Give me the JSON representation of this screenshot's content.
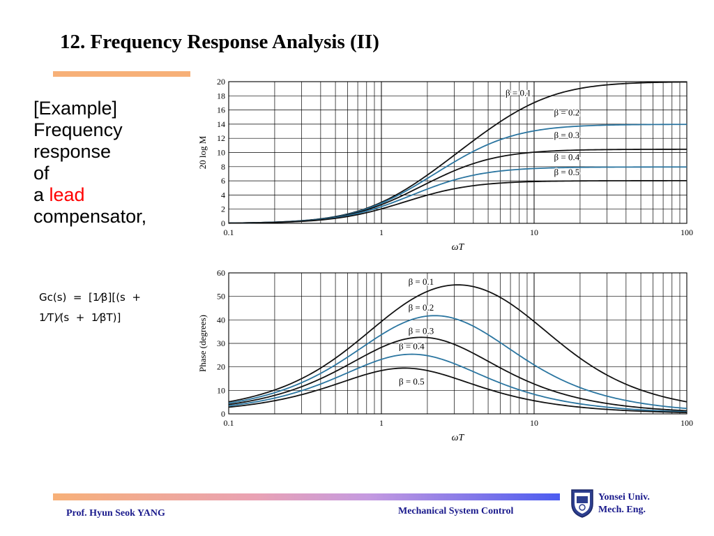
{
  "slide": {
    "title": "12. Frequency Response Analysis (II)",
    "text_lines": [
      "[Example]",
      "Frequency",
      "response",
      "of"
    ],
    "lead_prefix": "a ",
    "lead_word": "lead",
    "last_line": "compensator,",
    "formula_lines": [
      "Gᴄ(s)  =  [1⁄β][(s  +",
      "1⁄T)⁄(s  +  1⁄βT)]"
    ]
  },
  "footer": {
    "author": "Prof. Hyun Seok YANG",
    "course": "Mechanical System Control",
    "university_line1": "Yonsei Univ.",
    "university_line2": "Mech. Eng."
  },
  "colors": {
    "curve_black": "#111111",
    "curve_blue": "#2a75a0",
    "title_bar": "#f7b078",
    "footer_text": "#1a1a8c",
    "lead_word": "#ff0000"
  },
  "chart_data": [
    {
      "type": "line",
      "x_scale": "log",
      "xlabel": "ωT",
      "ylabel": "20 log M",
      "xlim": [
        0.1,
        100
      ],
      "ylim": [
        0,
        20
      ],
      "x_ticks": [
        "0.1",
        "1",
        "10",
        "100"
      ],
      "y_ticks": [
        "0",
        "2",
        "4",
        "6",
        "8",
        "10",
        "12",
        "14",
        "16",
        "18",
        "20"
      ],
      "grid": true,
      "series": [
        {
          "name": "β = 0.1",
          "beta": 0.1,
          "color": "#111111"
        },
        {
          "name": "β = 0.2",
          "beta": 0.2,
          "color": "#2a75a0"
        },
        {
          "name": "β = 0.3",
          "beta": 0.3,
          "color": "#111111"
        },
        {
          "name": "β = 0.4",
          "beta": 0.4,
          "color": "#2a75a0"
        },
        {
          "name": "β = 0.5",
          "beta": 0.5,
          "color": "#111111"
        }
      ],
      "annotations": [
        {
          "text": "β = 0.1",
          "x": 6.5,
          "y": 18.0
        },
        {
          "text": "β = 0.2",
          "x": 13.5,
          "y": 15.2
        },
        {
          "text": "β = 0.3",
          "x": 13.5,
          "y": 12.0
        },
        {
          "text": "β = 0.4",
          "x": 13.5,
          "y": 8.9
        },
        {
          "text": "β = 0.5",
          "x": 13.5,
          "y": 6.8
        }
      ]
    },
    {
      "type": "line",
      "x_scale": "log",
      "xlabel": "ωT",
      "ylabel": "Phase (degrees)",
      "xlim": [
        0.1,
        100
      ],
      "ylim": [
        0,
        60
      ],
      "x_ticks": [
        "0.1",
        "1",
        "10",
        "100"
      ],
      "y_ticks": [
        "0",
        "10",
        "20",
        "30",
        "40",
        "50",
        "60"
      ],
      "grid": true,
      "series": [
        {
          "name": "β = 0.1",
          "beta": 0.1,
          "color": "#111111"
        },
        {
          "name": "β = 0.2",
          "beta": 0.2,
          "color": "#2a75a0"
        },
        {
          "name": "β = 0.3",
          "beta": 0.3,
          "color": "#111111"
        },
        {
          "name": "β = 0.4",
          "beta": 0.4,
          "color": "#2a75a0"
        },
        {
          "name": "β = 0.5",
          "beta": 0.5,
          "color": "#111111"
        }
      ],
      "annotations": [
        {
          "text": "β = 0.1",
          "x": 1.5,
          "y": 55.0
        },
        {
          "text": "β = 0.2",
          "x": 1.5,
          "y": 44.0
        },
        {
          "text": "β = 0.3",
          "x": 1.5,
          "y": 34.0
        },
        {
          "text": "β = 0.4",
          "x": 1.3,
          "y": 27.5
        },
        {
          "text": "β = 0.5",
          "x": 1.3,
          "y": 12.5
        }
      ]
    }
  ]
}
